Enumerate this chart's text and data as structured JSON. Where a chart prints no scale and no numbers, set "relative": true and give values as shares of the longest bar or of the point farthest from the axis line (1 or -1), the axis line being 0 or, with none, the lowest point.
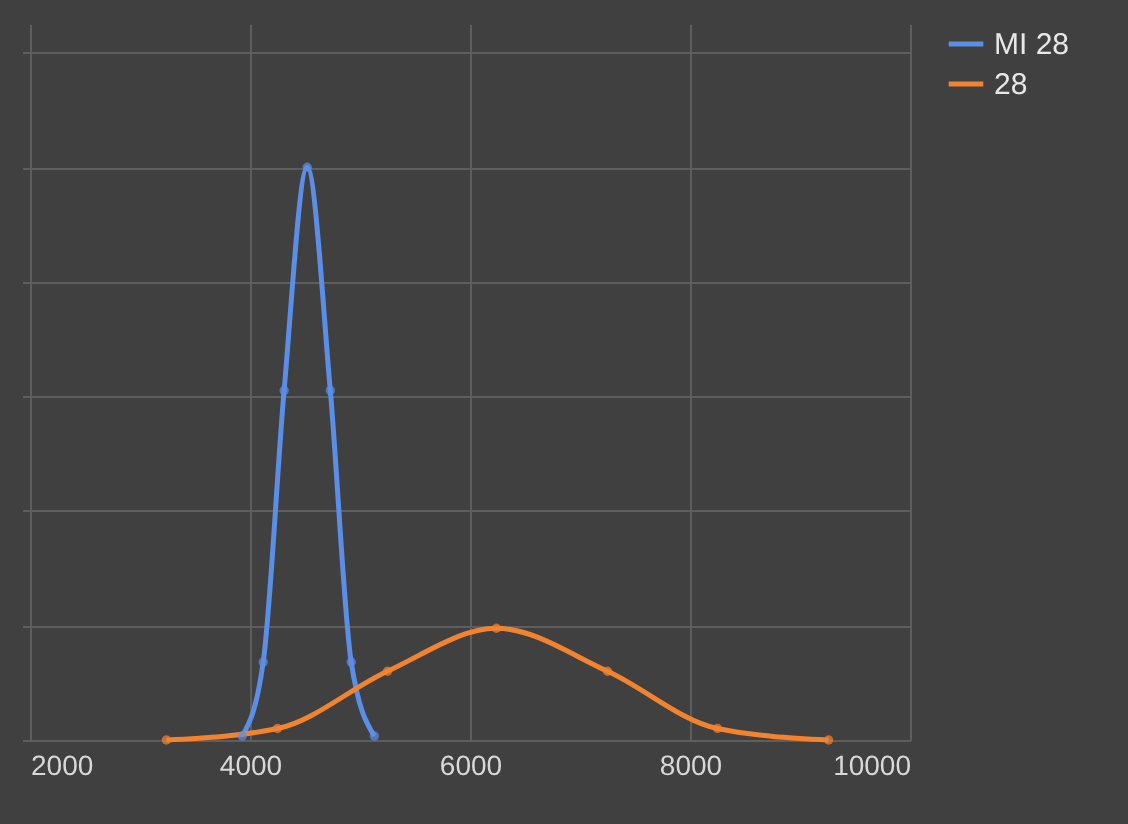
{
  "chart_data": {
    "type": "line",
    "relative": true,
    "xlim": [
      2000,
      10000
    ],
    "xticks": [
      2000,
      4000,
      6000,
      8000,
      10000
    ],
    "grid": true,
    "legend": "right",
    "marker": "circle",
    "line_style": "solid",
    "tick_labels": "x",
    "series": [
      {
        "name": "MI 28",
        "color": "#5b8ee6",
        "x": [
          3930,
          4120,
          4310,
          4520,
          4730,
          4920,
          5130
        ],
        "values": [
          0.007,
          0.136,
          0.61,
          1,
          0.61,
          0.136,
          0.007
        ]
      },
      {
        "name": "28",
        "color": "#f2832f",
        "x": [
          3240,
          4250,
          5250,
          6240,
          7250,
          8250,
          9260
        ],
        "values": [
          0,
          0.02,
          0.12,
          0.195,
          0.12,
          0.02,
          0
        ]
      }
    ]
  }
}
